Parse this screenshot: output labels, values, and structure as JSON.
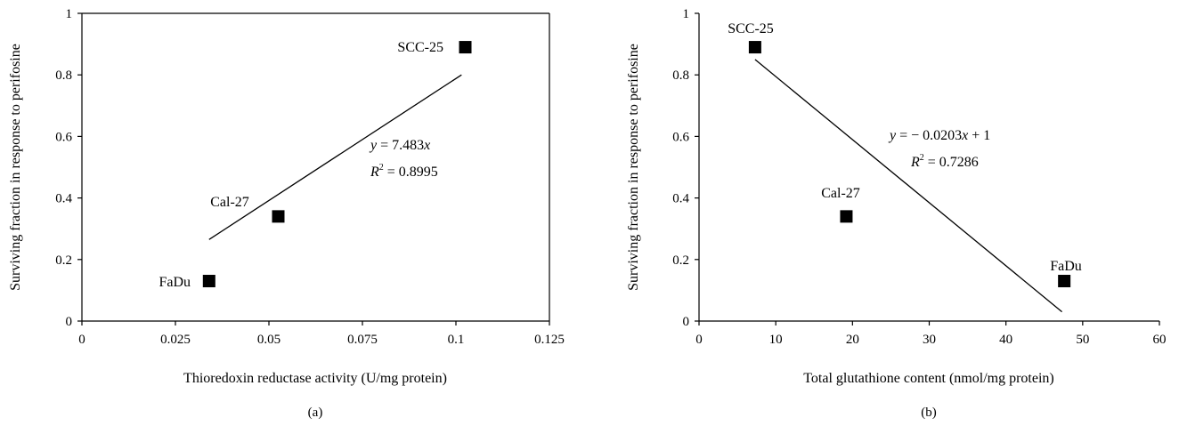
{
  "chart_data": [
    {
      "type": "scatter",
      "panel_label": "(a)",
      "xlabel": "Thioredoxin reductase activity (U/mg protein)",
      "ylabel": "Surviving fraction in response to perifosine",
      "xlim": [
        0,
        0.125
      ],
      "ylim": [
        0,
        1
      ],
      "xticks": [
        "0",
        "0.025",
        "0.05",
        "0.075",
        "0.1",
        "0.125"
      ],
      "yticks": [
        "0",
        "0.2",
        "0.4",
        "0.6",
        "0.8",
        "1"
      ],
      "points": [
        {
          "label": "FaDu",
          "x": 0.034,
          "y": 0.13
        },
        {
          "label": "Cal-27",
          "x": 0.0525,
          "y": 0.34
        },
        {
          "label": "SCC-25",
          "x": 0.1025,
          "y": 0.89
        }
      ],
      "trendline": {
        "x": [
          0.034,
          0.1015
        ],
        "y": [
          0.265,
          0.8
        ]
      },
      "equation": {
        "lhs": "y",
        "rhs": " = 7.483",
        "x_var": "x"
      },
      "r_squared": {
        "label": "R",
        "sup": "2",
        "value": " = 0.8995"
      }
    },
    {
      "type": "scatter",
      "panel_label": "(b)",
      "xlabel": "Total glutathione content (nmol/mg protein)",
      "ylabel": "Surviving fraction in response to perifosine",
      "xlim": [
        0,
        60
      ],
      "ylim": [
        0,
        1
      ],
      "xticks": [
        "0",
        "10",
        "20",
        "30",
        "40",
        "50",
        "60"
      ],
      "yticks": [
        "0",
        "0.2",
        "0.4",
        "0.6",
        "0.8",
        "1"
      ],
      "points": [
        {
          "label": "SCC-25",
          "x": 7.3,
          "y": 0.89
        },
        {
          "label": "Cal-27",
          "x": 19.2,
          "y": 0.34
        },
        {
          "label": "FaDu",
          "x": 47.6,
          "y": 0.13
        }
      ],
      "trendline": {
        "x": [
          7.3,
          47.3
        ],
        "y": [
          0.85,
          0.03
        ]
      },
      "equation": {
        "lhs": "y",
        "rhs": " = − 0.0203",
        "x_var": "x",
        "tail": " + 1"
      },
      "r_squared": {
        "label": "R",
        "sup": "2",
        "value": " = 0.7286"
      }
    }
  ]
}
